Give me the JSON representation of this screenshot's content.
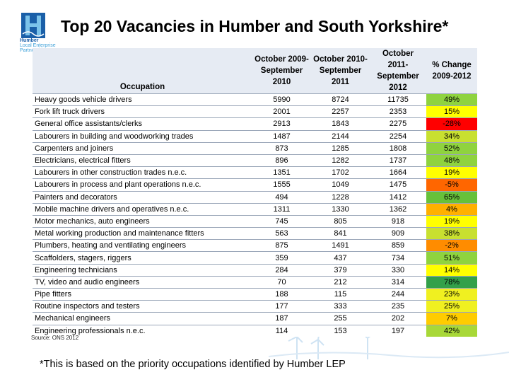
{
  "logo": {
    "line1": "Humber",
    "line2": "Local Enterprise",
    "line3": "Partnership",
    "icon": "humber-h-logo-icon"
  },
  "title": "Top 20 Vacancies in Humber and South Yorkshire*",
  "table": {
    "headers": [
      "Occupation",
      "October 2009- September 2010",
      "October 2010- September 2011",
      "October 2011- September 2012",
      "% Change 2009-2012"
    ],
    "colors": {
      "header_bg": "#e6ebf3",
      "red": "#ff0000",
      "orange": "#ff6600",
      "yellow": "#ffff00",
      "green": "#66c13a",
      "dark_green": "#33a04a",
      "yellow_green": "#c8e030",
      "orange_light": "#ffb000"
    },
    "rows": [
      {
        "occupation": "Heavy goods vehicle drivers",
        "y2010": "5990",
        "y2011": "8724",
        "y2012": "11735",
        "change": "49%",
        "color": "#8fd33f"
      },
      {
        "occupation": "Fork lift truck drivers",
        "y2010": "2001",
        "y2011": "2257",
        "y2012": "2353",
        "change": "15%",
        "color": "#ffff00"
      },
      {
        "occupation": "General office assistants/clerks",
        "y2010": "2913",
        "y2011": "1843",
        "y2012": "2275",
        "change": "-28%",
        "color": "#ff0000"
      },
      {
        "occupation": "Labourers in building and woodworking trades",
        "y2010": "1487",
        "y2011": "2144",
        "y2012": "2254",
        "change": "34%",
        "color": "#c8e030"
      },
      {
        "occupation": "Carpenters and joiners",
        "y2010": "873",
        "y2011": "1285",
        "y2012": "1808",
        "change": "52%",
        "color": "#8fd33f"
      },
      {
        "occupation": "Electricians, electrical fitters",
        "y2010": "896",
        "y2011": "1282",
        "y2012": "1737",
        "change": "48%",
        "color": "#8fd33f"
      },
      {
        "occupation": "Labourers in other construction trades n.e.c.",
        "y2010": "1351",
        "y2011": "1702",
        "y2012": "1664",
        "change": "19%",
        "color": "#ffff00"
      },
      {
        "occupation": "Labourers in process and plant operations n.e.c.",
        "y2010": "1555",
        "y2011": "1049",
        "y2012": "1475",
        "change": "-5%",
        "color": "#ff6600"
      },
      {
        "occupation": "Painters and decorators",
        "y2010": "494",
        "y2011": "1228",
        "y2012": "1412",
        "change": "65%",
        "color": "#66c13a"
      },
      {
        "occupation": "Mobile machine drivers and operatives n.e.c.",
        "y2010": "1311",
        "y2011": "1330",
        "y2012": "1362",
        "change": "4%",
        "color": "#ffb000"
      },
      {
        "occupation": "Motor mechanics, auto engineers",
        "y2010": "745",
        "y2011": "805",
        "y2012": "918",
        "change": "19%",
        "color": "#ffff00"
      },
      {
        "occupation": "Metal working production and maintenance fitters",
        "y2010": "563",
        "y2011": "841",
        "y2012": "909",
        "change": "38%",
        "color": "#c8e030"
      },
      {
        "occupation": "Plumbers, heating and ventilating engineers",
        "y2010": "875",
        "y2011": "1491",
        "y2012": "859",
        "change": "-2%",
        "color": "#ff8c00"
      },
      {
        "occupation": "Scaffolders, stagers, riggers",
        "y2010": "359",
        "y2011": "437",
        "y2012": "734",
        "change": "51%",
        "color": "#8fd33f"
      },
      {
        "occupation": "Engineering technicians",
        "y2010": "284",
        "y2011": "379",
        "y2012": "330",
        "change": "14%",
        "color": "#ffff00"
      },
      {
        "occupation": "TV, video and audio engineers",
        "y2010": "70",
        "y2011": "212",
        "y2012": "314",
        "change": "78%",
        "color": "#33a04a"
      },
      {
        "occupation": "Pipe fitters",
        "y2010": "188",
        "y2011": "115",
        "y2012": "244",
        "change": "23%",
        "color": "#f0f020"
      },
      {
        "occupation": "Routine inspectors and testers",
        "y2010": "177",
        "y2011": "333",
        "y2012": "235",
        "change": "25%",
        "color": "#f0f020"
      },
      {
        "occupation": "Mechanical engineers",
        "y2010": "187",
        "y2011": "255",
        "y2012": "202",
        "change": "7%",
        "color": "#ffcc00"
      },
      {
        "occupation": "Engineering professionals n.e.c.",
        "y2010": "114",
        "y2011": "153",
        "y2012": "197",
        "change": "42%",
        "color": "#a8d838"
      }
    ]
  },
  "source": "Source: ONS 2012",
  "footnote": "*This is based on the priority occupations identified by Humber LEP"
}
